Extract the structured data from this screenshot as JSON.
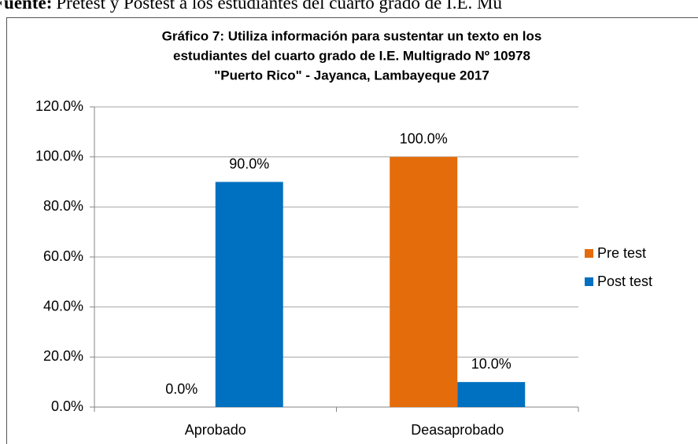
{
  "source_prefix": "Fuente:",
  "source": "Pretest y Postest a los estudiantes del cuarto grado de I.E. Mu",
  "chart_data": {
    "type": "bar",
    "title": [
      "Gráfico 7: Utiliza información  para sustentar un texto en los",
      "estudiantes del cuarto grado de I.E. Multigrado Nº 10978",
      "\"Puerto Rico\" - Jayanca,  Lambayeque  2017"
    ],
    "categories": [
      "Aprobado",
      "Deasaprobado"
    ],
    "series": [
      {
        "name": "Pre test",
        "color": "#e46c0a",
        "values": [
          0,
          100
        ],
        "value_labels": [
          "0.0%",
          "100.0%"
        ]
      },
      {
        "name": "Post test",
        "color": "#0070c0",
        "values": [
          90,
          10
        ],
        "value_labels": [
          "90.0%",
          "10.0%"
        ]
      }
    ],
    "ylim": [
      0,
      120
    ],
    "yticks": [
      {
        "value": 0,
        "label": "0.0%"
      },
      {
        "value": 20,
        "label": "20.0%"
      },
      {
        "value": 40,
        "label": "40.0%"
      },
      {
        "value": 60,
        "label": "60.0%"
      },
      {
        "value": 80,
        "label": "80.0%"
      },
      {
        "value": 100,
        "label": "100.0%"
      },
      {
        "value": 120,
        "label": "120.0%"
      }
    ],
    "grid": true,
    "legend": "right"
  }
}
